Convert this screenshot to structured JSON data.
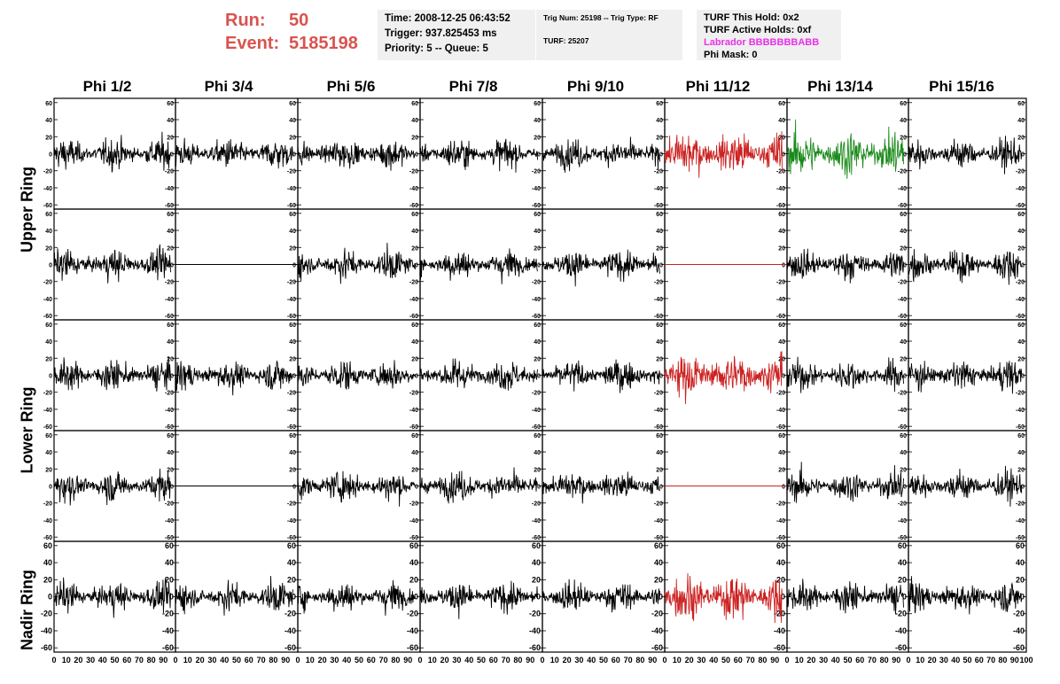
{
  "header": {
    "run_label": "Run:",
    "run_value": "50",
    "event_label": "Event:",
    "event_value": "5185198",
    "time": "Time: 2008-12-25 06:43:52",
    "trigger": "Trigger: 937.825453 ms",
    "priority": "Priority: 5 -- Queue: 5",
    "trig_num": "Trig Num: 25198 -- Trig Type: RF",
    "turf": "TURF: 25207",
    "turf_this_hold": "TURF This Hold: 0x2",
    "turf_active_holds": "TURF Active Holds: 0xf",
    "labrador": "Labrador BBBBBBBABB",
    "phi_mask": "Phi Mask: 0"
  },
  "colors": {
    "normal": "#000000",
    "triggered": "#cc2222",
    "highlight": "#1a8a1a",
    "header_red": "#d9534f",
    "labrador": "#e830e8"
  },
  "chart_data": {
    "type": "line",
    "columns": [
      "Phi 1/2",
      "Phi 3/4",
      "Phi 5/6",
      "Phi 7/8",
      "Phi 9/10",
      "Phi 11/12",
      "Phi 13/14",
      "Phi 15/16"
    ],
    "ring_labels": [
      "Upper Ring",
      "Lower Ring",
      "Nadir Ring"
    ],
    "xlim": [
      0,
      100
    ],
    "ylim": [
      -65,
      65
    ],
    "x_ticks": [
      0,
      10,
      20,
      30,
      40,
      50,
      60,
      70,
      80,
      90,
      100
    ],
    "y_ticks": [
      60,
      40,
      20,
      0,
      -20,
      -40,
      -60
    ],
    "panels": [
      [
        "noise",
        "noise",
        "noise",
        "noise",
        "noise",
        "red",
        "green",
        "noise"
      ],
      [
        "noise",
        "flat",
        "noise",
        "noise",
        "noise",
        "flat-red",
        "noise",
        "noise"
      ],
      [
        "noise",
        "noise",
        "noise",
        "noise",
        "noise",
        "red",
        "noise",
        "noise"
      ],
      [
        "noise",
        "flat",
        "noise",
        "noise",
        "noise",
        "flat-red",
        "noise",
        "noise"
      ],
      [
        "noise",
        "noise",
        "noise",
        "noise",
        "noise",
        "red",
        "noise",
        "noise"
      ]
    ]
  }
}
